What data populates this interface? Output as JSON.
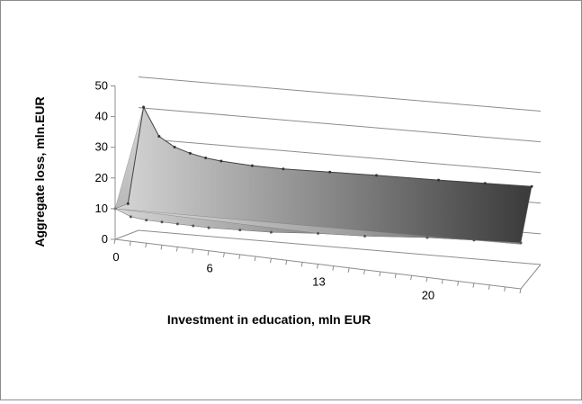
{
  "chart_data": {
    "type": "area",
    "style": "3d-surface",
    "xlabel": "Investment in education, mln EUR",
    "ylabel": "Aggregate loss, mln.EUR",
    "x_tick_labels": [
      "0",
      "6",
      "13",
      "20"
    ],
    "y_ticks": [
      0,
      10,
      20,
      30,
      40,
      50
    ],
    "ylim": [
      0,
      50
    ],
    "xlim": [
      0,
      26
    ],
    "grid": true,
    "legend": "none",
    "series": [
      {
        "x": [
          0,
          1,
          2,
          3,
          4,
          5,
          6,
          8,
          10,
          13,
          16,
          20,
          23,
          26
        ],
        "values": [
          10,
          42,
          33,
          30,
          28.5,
          27.5,
          27,
          26.5,
          26.5,
          27,
          27.5,
          28,
          28.5,
          29
        ]
      },
      {
        "x": [
          0,
          1,
          2,
          3,
          4,
          5,
          6,
          8,
          10,
          13,
          16,
          20,
          23,
          26
        ],
        "values": [
          10,
          8,
          7.5,
          7.5,
          7.5,
          7.5,
          7.5,
          8,
          8.5,
          10,
          11,
          13,
          14,
          15
        ]
      }
    ],
    "colors": {
      "surface_light": "#d2d2d2",
      "surface_mid": "#8f8f8f",
      "surface_dark": "#3a3a3a",
      "grid": "#8c8c8c"
    }
  }
}
